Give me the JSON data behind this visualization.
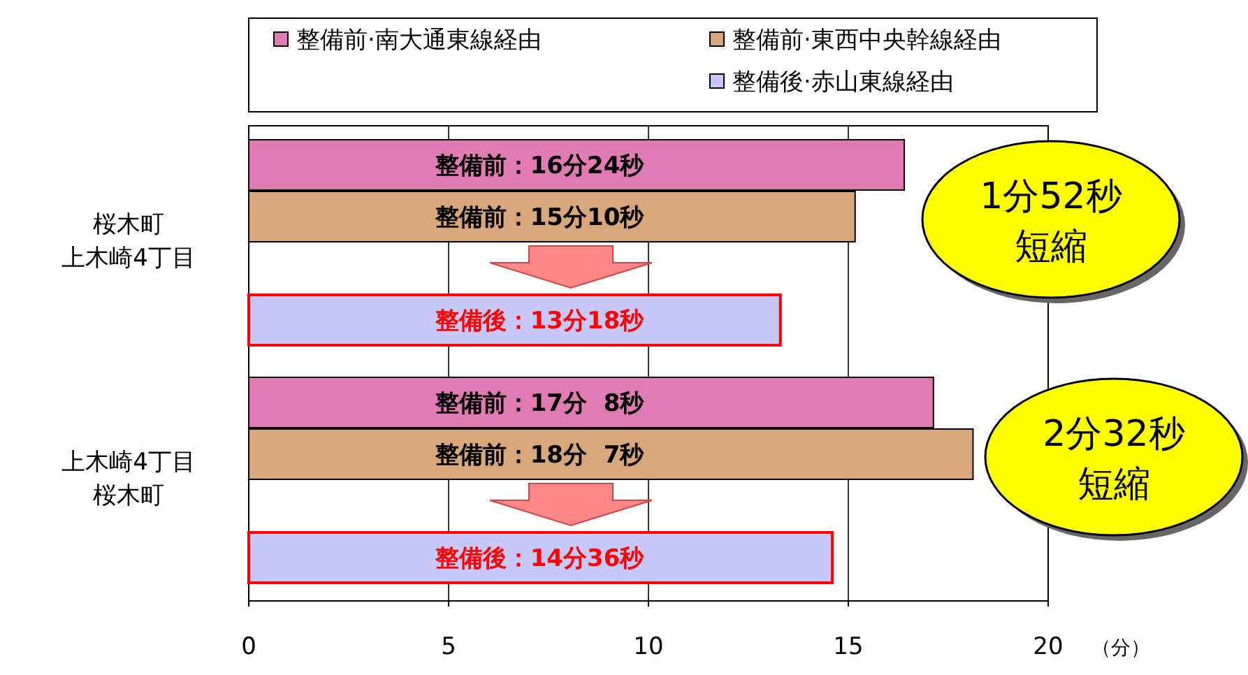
{
  "chart_data": {
    "type": "bar",
    "orientation": "horizontal",
    "categories": [
      "桜木町上木崎4丁目",
      "上木崎4丁目桜木町"
    ],
    "series": [
      {
        "name": "整備前·南大通東線経由",
        "color": "#e07bb4",
        "values": [
          16.4,
          17.13
        ],
        "value_labels": [
          "整備前：16分24秒",
          "整備前：17分  8秒"
        ]
      },
      {
        "name": "整備前·東西中央幹線経由",
        "color": "#d9a77c",
        "values": [
          15.17,
          18.12
        ],
        "value_labels": [
          "整備前：15分10秒",
          "整備前：18分  7秒"
        ]
      },
      {
        "name": "整備後·赤山東線経由",
        "color": "#c8c8f8",
        "values": [
          13.3,
          14.6
        ],
        "value_labels": [
          "整備後：13分18秒",
          "整備後：14分36秒"
        ]
      }
    ],
    "xlim": [
      0,
      20
    ],
    "xticks": [
      0,
      5,
      10,
      15,
      20
    ],
    "xlabel": "（分）",
    "grid": "x",
    "legend": "top",
    "annotations": [
      "1分52秒短縮",
      "2分32秒短縮"
    ]
  }
}
